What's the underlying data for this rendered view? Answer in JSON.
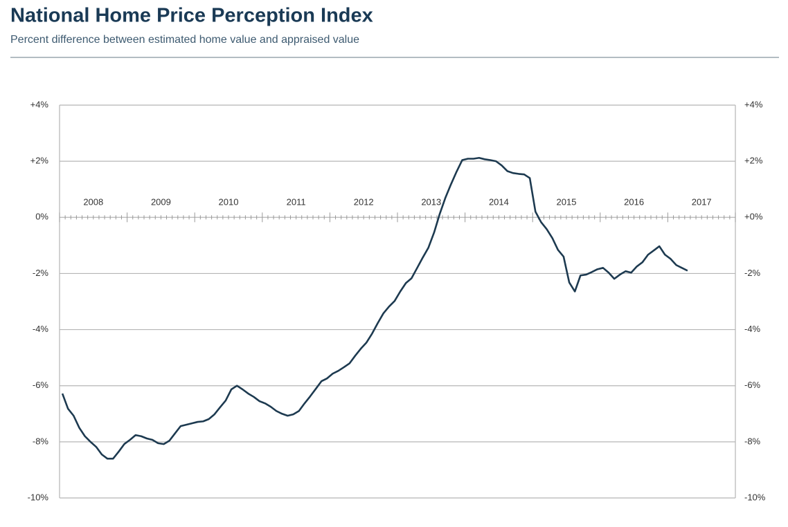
{
  "chart_data": {
    "type": "line",
    "title": "National Home Price Perception Index",
    "subtitle": "Percent difference between estimated home value and appraised value",
    "xlim": [
      2008,
      2018
    ],
    "xticks": [
      {
        "value": 2008.5,
        "label": "2008"
      },
      {
        "value": 2009.5,
        "label": "2009"
      },
      {
        "value": 2010.5,
        "label": "2010"
      },
      {
        "value": 2011.5,
        "label": "2011"
      },
      {
        "value": 2012.5,
        "label": "2012"
      },
      {
        "value": 2013.5,
        "label": "2013"
      },
      {
        "value": 2014.5,
        "label": "2014"
      },
      {
        "value": 2015.5,
        "label": "2015"
      },
      {
        "value": 2016.5,
        "label": "2016"
      },
      {
        "value": 2017.5,
        "label": "2017"
      }
    ],
    "ylim": [
      -10,
      4
    ],
    "yticks": [
      {
        "value": 4,
        "label": "+4%"
      },
      {
        "value": 2,
        "label": "+2%"
      },
      {
        "value": 0,
        "label": "0%"
      },
      {
        "value": -2,
        "label": "-2%"
      },
      {
        "value": -4,
        "label": "-4%"
      },
      {
        "value": -6,
        "label": "-6%"
      },
      {
        "value": -8,
        "label": "-8%"
      },
      {
        "value": -10,
        "label": "-10%"
      }
    ],
    "y2lim": [
      -10,
      4
    ],
    "y2ticks": [
      {
        "value": 4,
        "label": "+4%"
      },
      {
        "value": 2,
        "label": "+2%"
      },
      {
        "value": 0,
        "label": "+0%"
      },
      {
        "value": -2,
        "label": "-2%"
      },
      {
        "value": -4,
        "label": "-4%"
      },
      {
        "value": -6,
        "label": "-6%"
      },
      {
        "value": -8,
        "label": "-8%"
      },
      {
        "value": -10,
        "label": "-10%"
      }
    ],
    "grid": true,
    "x": [
      2008.042,
      2008.125,
      2008.208,
      2008.292,
      2008.375,
      2008.458,
      2008.542,
      2008.625,
      2008.708,
      2008.792,
      2008.875,
      2008.958,
      2009.042,
      2009.125,
      2009.208,
      2009.292,
      2009.375,
      2009.458,
      2009.542,
      2009.625,
      2009.708,
      2009.792,
      2009.875,
      2009.958,
      2010.042,
      2010.125,
      2010.208,
      2010.292,
      2010.375,
      2010.458,
      2010.542,
      2010.625,
      2010.708,
      2010.792,
      2010.875,
      2010.958,
      2011.042,
      2011.125,
      2011.208,
      2011.292,
      2011.375,
      2011.458,
      2011.542,
      2011.625,
      2011.708,
      2011.792,
      2011.875,
      2011.958,
      2012.042,
      2012.125,
      2012.208,
      2012.292,
      2012.375,
      2012.458,
      2012.542,
      2012.625,
      2012.708,
      2012.792,
      2012.875,
      2012.958,
      2013.042,
      2013.125,
      2013.208,
      2013.292,
      2013.375,
      2013.458,
      2013.542,
      2013.625,
      2013.708,
      2013.792,
      2013.875,
      2013.958,
      2014.042,
      2014.125,
      2014.208,
      2014.292,
      2014.375,
      2014.458,
      2014.542,
      2014.625,
      2014.708,
      2014.792,
      2014.875,
      2014.958,
      2015.042,
      2015.125,
      2015.208,
      2015.292,
      2015.375,
      2015.458,
      2015.542,
      2015.625,
      2015.708,
      2015.792,
      2015.875,
      2015.958,
      2016.042,
      2016.125,
      2016.208,
      2016.292,
      2016.375,
      2016.458,
      2016.542,
      2016.625,
      2016.708,
      2016.792,
      2016.875,
      2016.958,
      2017.042,
      2017.125,
      2017.208,
      2017.292
    ],
    "series": [
      {
        "color": "#1d3a50",
        "values": [
          -6.28,
          -6.82,
          -7.07,
          -7.5,
          -7.8,
          -8.0,
          -8.18,
          -8.45,
          -8.6,
          -8.6,
          -8.35,
          -8.08,
          -7.93,
          -7.76,
          -7.8,
          -7.88,
          -7.93,
          -8.05,
          -8.08,
          -7.96,
          -7.7,
          -7.44,
          -7.39,
          -7.34,
          -7.29,
          -7.27,
          -7.19,
          -7.02,
          -6.77,
          -6.53,
          -6.13,
          -6.0,
          -6.13,
          -6.28,
          -6.4,
          -6.55,
          -6.63,
          -6.75,
          -6.9,
          -7.0,
          -7.07,
          -7.02,
          -6.9,
          -6.63,
          -6.38,
          -6.11,
          -5.84,
          -5.74,
          -5.57,
          -5.47,
          -5.34,
          -5.2,
          -4.93,
          -4.68,
          -4.46,
          -4.14,
          -3.77,
          -3.42,
          -3.18,
          -2.98,
          -2.64,
          -2.34,
          -2.17,
          -1.8,
          -1.43,
          -1.08,
          -0.54,
          0.12,
          0.69,
          1.18,
          1.63,
          2.04,
          2.09,
          2.09,
          2.12,
          2.07,
          2.04,
          2.0,
          1.85,
          1.65,
          1.58,
          1.55,
          1.53,
          1.4,
          0.2,
          -0.17,
          -0.42,
          -0.74,
          -1.16,
          -1.4,
          -2.32,
          -2.64,
          -2.07,
          -2.04,
          -1.95,
          -1.85,
          -1.8,
          -1.97,
          -2.19,
          -2.04,
          -1.92,
          -1.97,
          -1.75,
          -1.6,
          -1.33,
          -1.18,
          -1.03,
          -1.33,
          -1.48,
          -1.7,
          -1.8,
          -1.9
        ]
      }
    ]
  }
}
